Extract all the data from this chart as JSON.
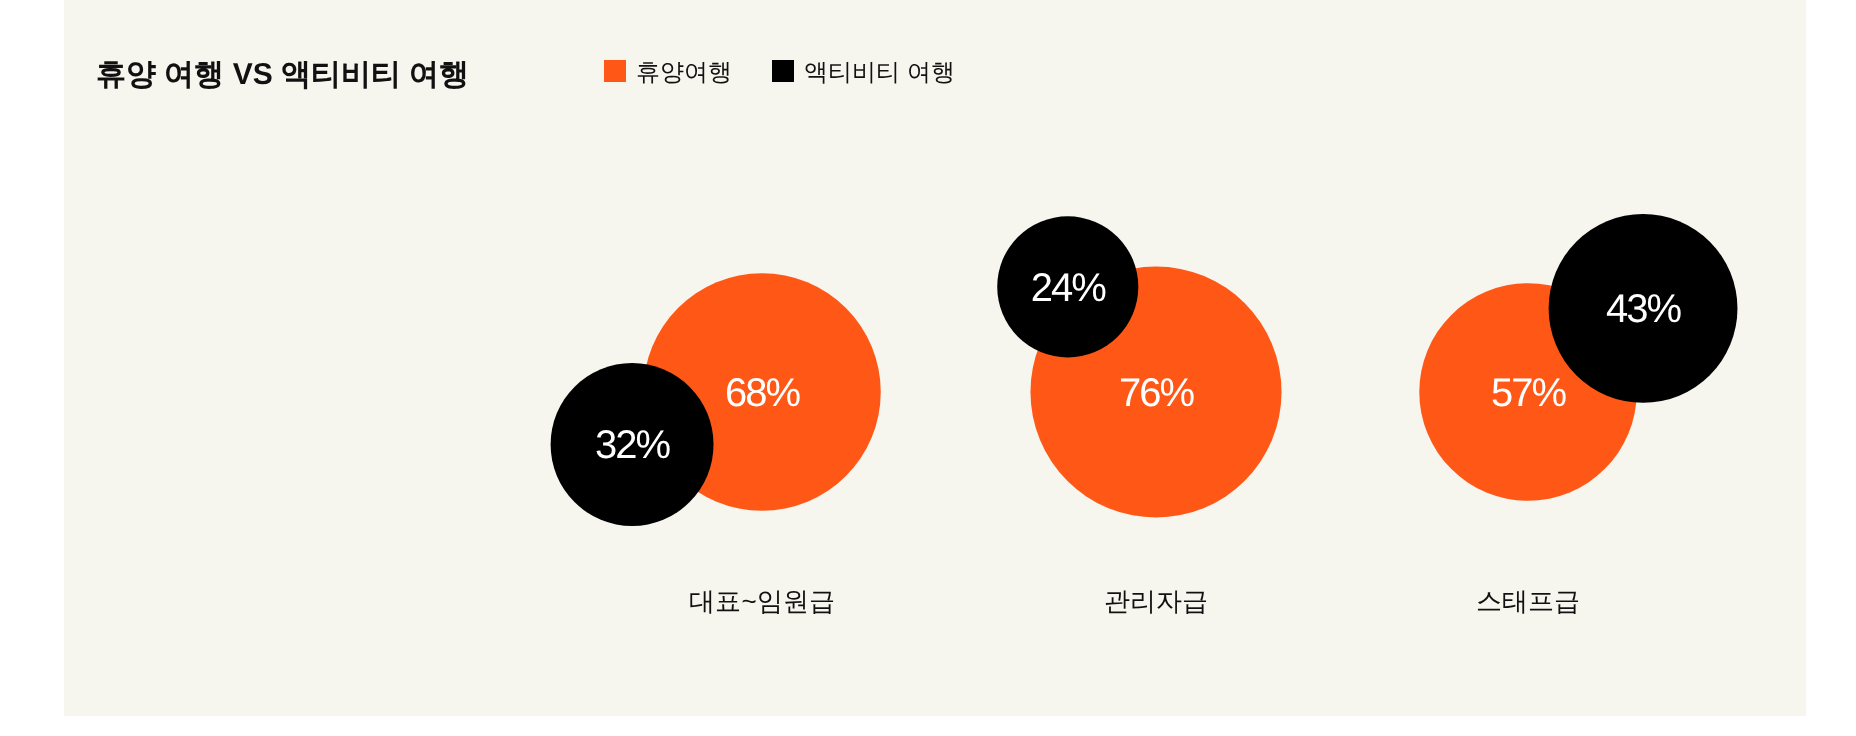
{
  "chart_data": {
    "type": "other",
    "title": "휴양 여행 VS 액티비티 여행",
    "categories": [
      "대표~임원급",
      "관리자급",
      "스태프급"
    ],
    "series": [
      {
        "name": "휴양여행",
        "color": "#ff5716",
        "values": [
          68,
          76,
          57
        ],
        "value_labels": [
          "68%",
          "76%",
          "57%"
        ]
      },
      {
        "name": "액티비티 여행",
        "color": "#000000",
        "values": [
          32,
          24,
          43
        ],
        "value_labels": [
          "32%",
          "24%",
          "43%"
        ]
      }
    ],
    "legend": "top"
  }
}
